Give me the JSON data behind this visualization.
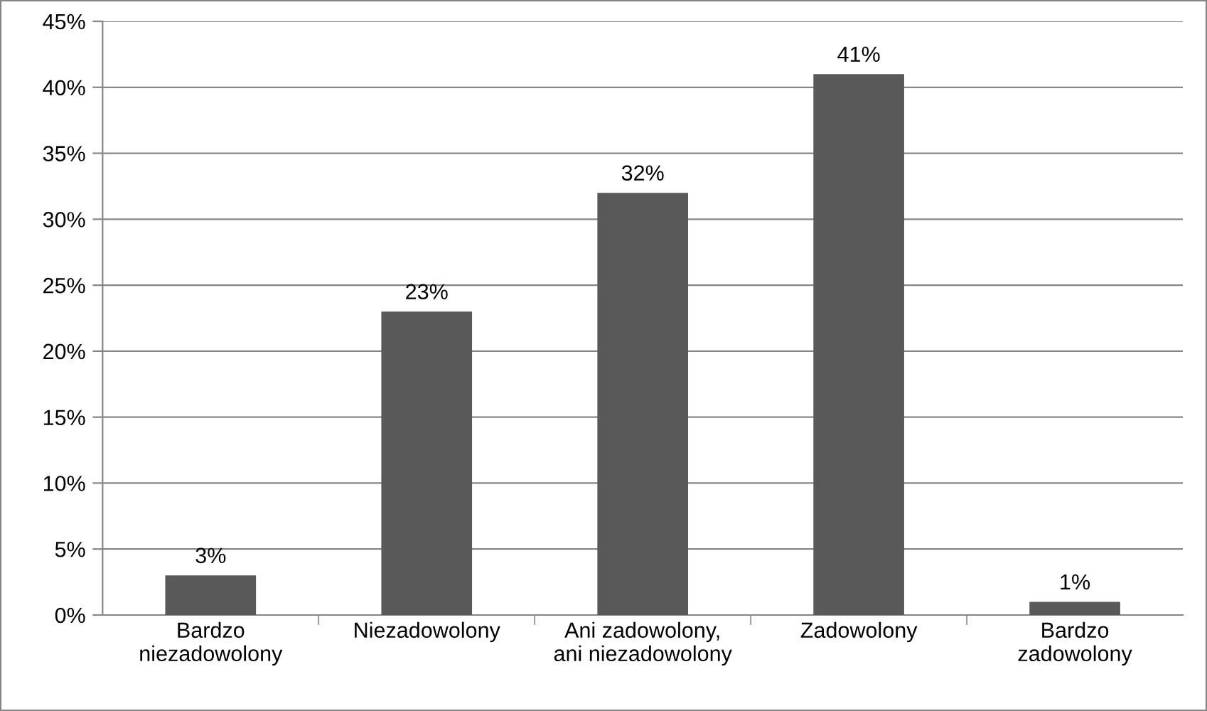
{
  "chart_data": {
    "type": "bar",
    "categories": [
      "Bardzo\nniezadowolony",
      "Niezadowolony",
      "Ani zadowolony,\nani niezadowolony",
      "Zadowolony",
      "Bardzo\nzadowolony"
    ],
    "values": [
      3,
      23,
      32,
      41,
      1
    ],
    "value_labels": [
      "3%",
      "23%",
      "32%",
      "41%",
      "1%"
    ],
    "color": "#595959",
    "ylim": [
      0,
      45
    ],
    "yticks": [
      {
        "value": 0,
        "label": "0%"
      },
      {
        "value": 5,
        "label": "5%"
      },
      {
        "value": 10,
        "label": "10%"
      },
      {
        "value": 15,
        "label": "15%"
      },
      {
        "value": 20,
        "label": "20%"
      },
      {
        "value": 25,
        "label": "25%"
      },
      {
        "value": 30,
        "label": "30%"
      },
      {
        "value": 35,
        "label": "35%"
      },
      {
        "value": 40,
        "label": "40%"
      },
      {
        "value": 45,
        "label": "45%"
      }
    ],
    "grid": "y",
    "legend": false
  }
}
